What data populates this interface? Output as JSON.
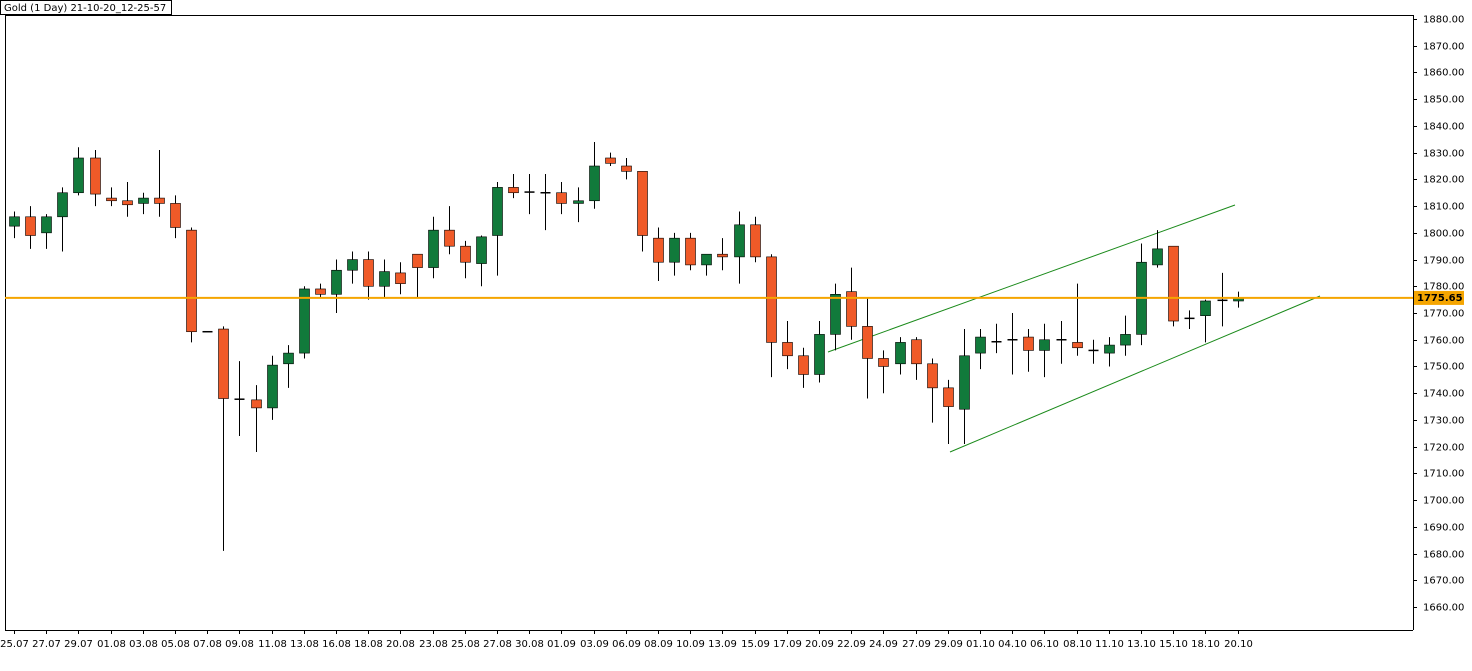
{
  "chart_data": {
    "type": "candlestick",
    "title": "Gold (1 Day) 21-10-20_12-25-57",
    "categories": [
      "25.07",
      null,
      "27.07",
      null,
      "29.07",
      null,
      "01.08",
      null,
      "03.08",
      null,
      "05.08",
      null,
      "07.08",
      null,
      "09.08",
      null,
      "11.08",
      null,
      "13.08",
      null,
      "16.08",
      null,
      "18.08",
      null,
      "20.08",
      null,
      "23.08",
      null,
      "25.08",
      null,
      "27.08",
      null,
      "30.08",
      null,
      "01.09",
      null,
      "03.09",
      null,
      "06.09",
      null,
      "08.09",
      null,
      "10.09",
      null,
      "13.09",
      null,
      "15.09",
      null,
      "17.09",
      null,
      "20.09",
      null,
      "22.09",
      null,
      "24.09",
      null,
      "27.09",
      null,
      "29.09",
      null,
      "01.10",
      null,
      "04.10",
      null,
      "06.10",
      null,
      "08.10",
      null,
      "11.10",
      null,
      "13.10",
      null,
      "15.10",
      null,
      "18.10",
      null,
      "20.10"
    ],
    "open": [
      1802.5,
      1806,
      1800,
      1806,
      1815,
      1828,
      1813,
      1812,
      1811,
      1813,
      1811,
      1801,
      1763,
      1764,
      1738,
      1737.5,
      1734.5,
      1751,
      1755,
      1779,
      1777,
      1786,
      1790,
      1780,
      1785,
      1792,
      1787,
      1801,
      1795,
      1788.5,
      1799,
      1817,
      1815.5,
      1815,
      1815,
      1811,
      1812,
      1828,
      1825,
      1823,
      1798,
      1789,
      1798,
      1788,
      1792,
      1791,
      1803,
      1791,
      1759,
      1754,
      1747,
      1762,
      1778,
      1765,
      1753,
      1751,
      1760,
      1751,
      1742,
      1734,
      1755,
      1759.5,
      1760,
      1761,
      1756,
      1760,
      1759,
      1756,
      1755,
      1758,
      1762,
      1788,
      1795,
      1768,
      1769,
      1774.5,
      1774.5
    ],
    "high": [
      1808,
      1810,
      1807,
      1817,
      1832,
      1831,
      1817,
      1819,
      1815,
      1831,
      1814,
      1802,
      1763,
      1765,
      1752,
      1743,
      1754,
      1758,
      1780,
      1781,
      1790,
      1793,
      1793,
      1790,
      1789,
      1792,
      1806,
      1810,
      1797,
      1799,
      1819,
      1822,
      1822,
      1822,
      1819,
      1817,
      1834,
      1830,
      1828,
      1823,
      1802,
      1800,
      1800,
      1792,
      1798,
      1808,
      1806,
      1792,
      1767,
      1757,
      1767,
      1781,
      1787,
      1776,
      1756,
      1761,
      1761,
      1753,
      1745,
      1764,
      1764,
      1766,
      1770,
      1764,
      1766,
      1767,
      1781,
      1760,
      1761,
      1769,
      1796,
      1801,
      1795,
      1771,
      1775,
      1785,
      1778
    ],
    "low": [
      1798,
      1794,
      1794,
      1793,
      1814,
      1810,
      1810,
      1806,
      1807,
      1806,
      1798,
      1759,
      1763,
      1681,
      1724,
      1718,
      1730,
      1742,
      1753,
      1776,
      1770,
      1781,
      1775,
      1776,
      1777,
      1776,
      1783,
      1792,
      1783,
      1780,
      1784,
      1813,
      1807,
      1801,
      1807,
      1804,
      1809,
      1825,
      1820,
      1793,
      1782,
      1784,
      1786,
      1784,
      1786,
      1781,
      1789,
      1746,
      1749,
      1742,
      1744,
      1756,
      1760,
      1738,
      1740,
      1747,
      1745,
      1729,
      1721,
      1721,
      1749,
      1755,
      1747,
      1748,
      1746,
      1751,
      1754,
      1751,
      1750,
      1754,
      1758,
      1787,
      1765,
      1764,
      1759,
      1765,
      1772
    ],
    "close": [
      1806,
      1799,
      1806,
      1815,
      1828,
      1814.5,
      1812,
      1810.5,
      1813,
      1811,
      1802,
      1763,
      1763,
      1738,
      1737.5,
      1734.5,
      1750.5,
      1755,
      1779,
      1777,
      1786,
      1790,
      1780,
      1785.5,
      1781,
      1787,
      1801,
      1795,
      1789,
      1798.5,
      1817,
      1815,
      1815,
      1815,
      1811,
      1812,
      1825,
      1826,
      1823,
      1799,
      1789,
      1798,
      1788,
      1792,
      1791,
      1803,
      1791,
      1759,
      1754,
      1747,
      1762,
      1777,
      1765,
      1753,
      1750,
      1759,
      1751,
      1742,
      1735,
      1754,
      1761,
      1759,
      1760,
      1756,
      1760,
      1760,
      1757,
      1756,
      1758,
      1762,
      1789,
      1794,
      1767,
      1768,
      1774.5,
      1775,
      1775.65
    ],
    "up_color": "#117a3b",
    "down_color": "#f05a28",
    "last_price": 1775.65,
    "price_line_color": "#f5a500",
    "ylim": [
      1651.4,
      1881.5
    ],
    "yticks": [
      {
        "value": 1660,
        "label": "1660.00"
      },
      {
        "value": 1670,
        "label": "1670.00"
      },
      {
        "value": 1680,
        "label": "1680.00"
      },
      {
        "value": 1690,
        "label": "1690.00"
      },
      {
        "value": 1700,
        "label": "1700.00"
      },
      {
        "value": 1710,
        "label": "1710.00"
      },
      {
        "value": 1720,
        "label": "1720.00"
      },
      {
        "value": 1730,
        "label": "1730.00"
      },
      {
        "value": 1740,
        "label": "1740.00"
      },
      {
        "value": 1750,
        "label": "1750.00"
      },
      {
        "value": 1760,
        "label": "1760.00"
      },
      {
        "value": 1770,
        "label": "1770.00"
      },
      {
        "value": 1780,
        "label": "1780.00"
      },
      {
        "value": 1790,
        "label": "1790.00"
      },
      {
        "value": 1800,
        "label": "1800.00"
      },
      {
        "value": 1810,
        "label": "1810.00"
      },
      {
        "value": 1820,
        "label": "1820.00"
      },
      {
        "value": 1830,
        "label": "1830.00"
      },
      {
        "value": 1840,
        "label": "1840.00"
      },
      {
        "value": 1850,
        "label": "1850.00"
      },
      {
        "value": 1860,
        "label": "1860.00"
      },
      {
        "value": 1870,
        "label": "1870.00"
      },
      {
        "value": 1880,
        "label": "1880.00"
      }
    ]
  }
}
